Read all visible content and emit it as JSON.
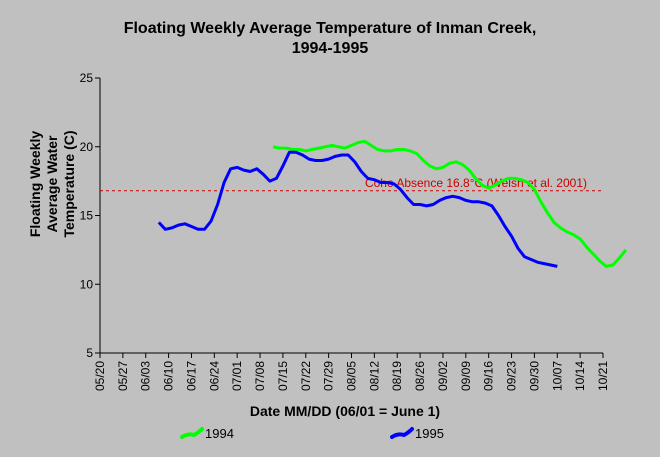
{
  "chart_data": {
    "type": "line",
    "title_line1": "Floating Weekly Average Temperature of Inman Creek,",
    "title_line2": "1994-1995",
    "xlabel": "Date MM/DD (06/01 = June 1)",
    "ylabel_lines": [
      "Floating Weekly",
      "Average Water",
      "Temperature (C)"
    ],
    "ylim": [
      5,
      25
    ],
    "yticks": [
      5,
      10,
      15,
      20,
      25
    ],
    "x_categories": [
      "05/20",
      "05/27",
      "06/03",
      "06/10",
      "06/17",
      "06/24",
      "07/01",
      "07/08",
      "07/15",
      "07/22",
      "07/29",
      "08/05",
      "08/12",
      "08/19",
      "08/26",
      "09/02",
      "09/09",
      "09/16",
      "09/23",
      "09/30",
      "10/07",
      "10/14",
      "10/21"
    ],
    "grid": false,
    "legend_placement": "bottom",
    "threshold": {
      "value": 16.8,
      "label": "Coho Absence 16.8°C (Welsh et al. 2001)",
      "color": "#cc0000"
    },
    "series": [
      {
        "name": "1994",
        "color": "#00ff00",
        "points": [
          [
            53,
            20.0
          ],
          [
            55,
            19.9
          ],
          [
            57,
            19.9
          ],
          [
            59,
            19.8
          ],
          [
            61,
            19.8
          ],
          [
            63,
            19.7
          ],
          [
            65,
            19.8
          ],
          [
            67,
            19.9
          ],
          [
            69,
            20.0
          ],
          [
            71,
            20.1
          ],
          [
            73,
            20.0
          ],
          [
            75,
            19.9
          ],
          [
            77,
            20.1
          ],
          [
            79,
            20.3
          ],
          [
            81,
            20.4
          ],
          [
            83,
            20.1
          ],
          [
            85,
            19.8
          ],
          [
            87,
            19.7
          ],
          [
            89,
            19.7
          ],
          [
            91,
            19.8
          ],
          [
            93,
            19.8
          ],
          [
            95,
            19.7
          ],
          [
            97,
            19.5
          ],
          [
            99,
            19.0
          ],
          [
            101,
            18.6
          ],
          [
            103,
            18.4
          ],
          [
            105,
            18.5
          ],
          [
            107,
            18.8
          ],
          [
            109,
            18.9
          ],
          [
            111,
            18.7
          ],
          [
            113,
            18.3
          ],
          [
            115,
            17.7
          ],
          [
            117,
            17.2
          ],
          [
            119,
            17.0
          ],
          [
            121,
            17.2
          ],
          [
            123,
            17.5
          ],
          [
            125,
            17.7
          ],
          [
            127,
            17.7
          ],
          [
            129,
            17.6
          ],
          [
            131,
            17.4
          ],
          [
            133,
            16.9
          ],
          [
            135,
            16.0
          ],
          [
            137,
            15.2
          ],
          [
            139,
            14.5
          ],
          [
            141,
            14.1
          ],
          [
            143,
            13.8
          ],
          [
            145,
            13.6
          ],
          [
            147,
            13.3
          ],
          [
            149,
            12.7
          ],
          [
            151,
            12.2
          ],
          [
            153,
            11.7
          ],
          [
            155,
            11.3
          ],
          [
            157,
            11.4
          ],
          [
            159,
            11.9
          ],
          [
            161,
            12.5
          ]
        ]
      },
      {
        "name": "1995",
        "color": "#0000ff",
        "points": [
          [
            18,
            14.5
          ],
          [
            20,
            14.0
          ],
          [
            22,
            14.1
          ],
          [
            24,
            14.3
          ],
          [
            26,
            14.4
          ],
          [
            28,
            14.2
          ],
          [
            30,
            14.0
          ],
          [
            32,
            14.0
          ],
          [
            34,
            14.6
          ],
          [
            36,
            15.8
          ],
          [
            38,
            17.4
          ],
          [
            40,
            18.4
          ],
          [
            42,
            18.5
          ],
          [
            44,
            18.3
          ],
          [
            46,
            18.2
          ],
          [
            48,
            18.4
          ],
          [
            50,
            18.0
          ],
          [
            52,
            17.5
          ],
          [
            54,
            17.7
          ],
          [
            56,
            18.6
          ],
          [
            58,
            19.6
          ],
          [
            60,
            19.6
          ],
          [
            62,
            19.4
          ],
          [
            64,
            19.1
          ],
          [
            66,
            19.0
          ],
          [
            68,
            19.0
          ],
          [
            70,
            19.1
          ],
          [
            72,
            19.3
          ],
          [
            74,
            19.4
          ],
          [
            76,
            19.4
          ],
          [
            78,
            18.9
          ],
          [
            80,
            18.2
          ],
          [
            82,
            17.7
          ],
          [
            84,
            17.6
          ],
          [
            86,
            17.4
          ],
          [
            88,
            17.4
          ],
          [
            90,
            17.3
          ],
          [
            92,
            16.9
          ],
          [
            94,
            16.3
          ],
          [
            96,
            15.8
          ],
          [
            98,
            15.8
          ],
          [
            100,
            15.7
          ],
          [
            102,
            15.8
          ],
          [
            104,
            16.1
          ],
          [
            106,
            16.3
          ],
          [
            108,
            16.4
          ],
          [
            110,
            16.3
          ],
          [
            112,
            16.1
          ],
          [
            114,
            16.0
          ],
          [
            116,
            16.0
          ],
          [
            118,
            15.9
          ],
          [
            120,
            15.7
          ],
          [
            122,
            15.0
          ],
          [
            124,
            14.2
          ],
          [
            126,
            13.5
          ],
          [
            128,
            12.6
          ],
          [
            130,
            12.0
          ],
          [
            132,
            11.8
          ],
          [
            134,
            11.6
          ],
          [
            136,
            11.5
          ],
          [
            138,
            11.4
          ],
          [
            140,
            11.3
          ]
        ]
      }
    ]
  }
}
